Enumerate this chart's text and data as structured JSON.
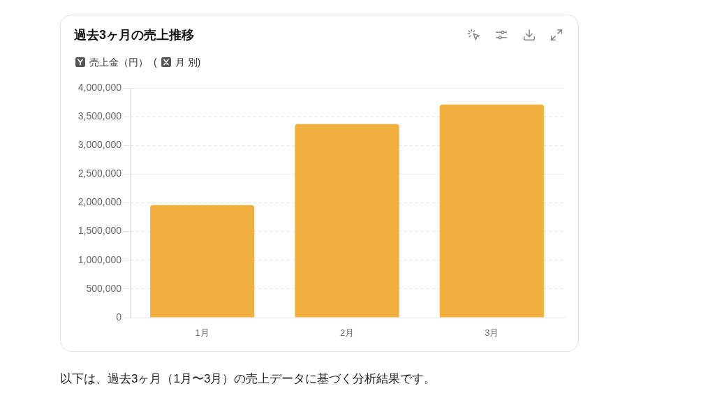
{
  "chart_data": {
    "type": "bar",
    "title": "過去3ヶ月の売上推移",
    "ylabel": "売上金（円）",
    "xlabel": "(月 別)",
    "categories": [
      "1月",
      "2月",
      "3月"
    ],
    "values": [
      1960000,
      3370000,
      3710000
    ],
    "color": "#f2b13e",
    "ylim": [
      0,
      4000000
    ],
    "yticks": [
      {
        "value": 0,
        "label": "0"
      },
      {
        "value": 500000,
        "label": "500,000"
      },
      {
        "value": 1000000,
        "label": "1,000,000"
      },
      {
        "value": 1500000,
        "label": "1,500,000"
      },
      {
        "value": 2000000,
        "label": "2,000,000"
      },
      {
        "value": 2500000,
        "label": "2,500,000"
      },
      {
        "value": 3000000,
        "label": "3,000,000"
      },
      {
        "value": 3500000,
        "label": "3,500,000"
      },
      {
        "value": 4000000,
        "label": "4,000,000"
      }
    ],
    "grid": "y",
    "annotations": [
      "以下は、過去3ヶ月（1月〜3月）の売上データに基づく分析結果です。"
    ]
  }
}
